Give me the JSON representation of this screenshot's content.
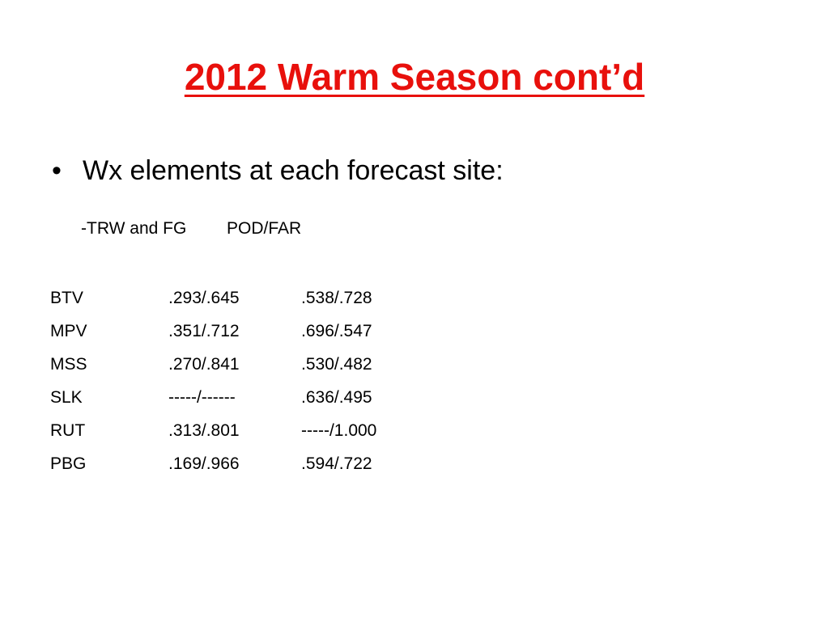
{
  "header": {
    "title": "2012 Warm Season cont’d"
  },
  "bullet": "Wx elements at each forecast site:",
  "subheading": {
    "label": "-TRW and FG",
    "metric": "POD/FAR"
  },
  "table": {
    "rows": [
      [
        "BTV",
        ".293/.645",
        ".538/.728"
      ],
      [
        "MPV",
        ".351/.712",
        ".696/.547"
      ],
      [
        "MSS",
        ".270/.841",
        ".530/.482"
      ],
      [
        "SLK",
        "-----/------",
        ".636/.495"
      ],
      [
        "RUT",
        ".313/.801",
        "-----/1.000"
      ],
      [
        "PBG",
        ".169/.966",
        ".594/.722"
      ]
    ]
  }
}
